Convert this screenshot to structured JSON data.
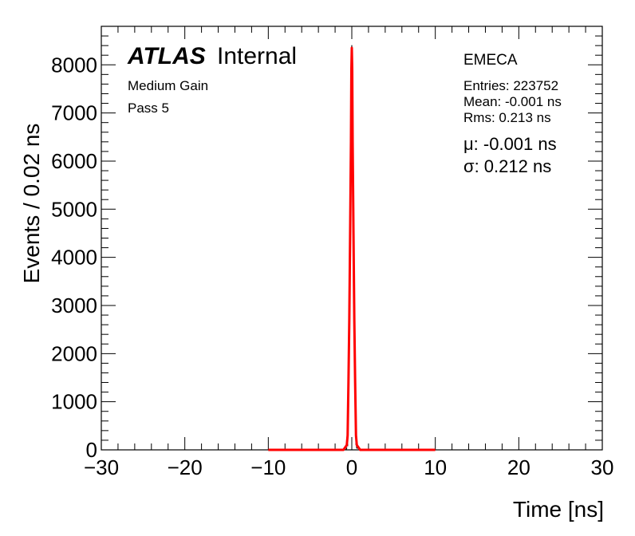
{
  "chart_data": {
    "type": "line",
    "xlabel": "Time [ns]",
    "ylabel": "Events / 0.02 ns",
    "xlim": [
      -30,
      30
    ],
    "ylim": [
      0,
      8800
    ],
    "x_ticks": [
      -30,
      -20,
      -10,
      0,
      10,
      20,
      30
    ],
    "x_tick_labels": [
      "−30",
      "−20",
      "−10",
      "0",
      "10",
      "20",
      "30"
    ],
    "y_ticks": [
      0,
      1000,
      2000,
      3000,
      4000,
      5000,
      6000,
      7000,
      8000
    ],
    "y_tick_labels": [
      "0",
      "1000",
      "2000",
      "3000",
      "4000",
      "5000",
      "6000",
      "7000",
      "8000"
    ],
    "grid": false,
    "series": [
      {
        "kind": "histogram",
        "color": "#000000",
        "x": [
          -0.7,
          -0.5,
          -0.4,
          -0.3,
          -0.2,
          -0.1,
          -0.05,
          0.0,
          0.05,
          0.1,
          0.2,
          0.3,
          0.4,
          0.5,
          0.7
        ],
        "y": [
          0,
          80,
          1200,
          2500,
          4300,
          6200,
          7700,
          8400,
          7800,
          6300,
          4400,
          2600,
          1300,
          90,
          0
        ]
      },
      {
        "kind": "fit",
        "color": "#ff0000",
        "x": [
          -10,
          -1.0,
          -0.6,
          -0.5,
          -0.4,
          -0.3,
          -0.2,
          -0.1,
          -0.05,
          0.0,
          0.05,
          0.1,
          0.2,
          0.3,
          0.4,
          0.5,
          0.6,
          1.0,
          10
        ],
        "y": [
          0,
          0,
          100,
          300,
          1400,
          2700,
          4500,
          6400,
          7900,
          8350,
          7900,
          6400,
          4500,
          2700,
          1400,
          300,
          100,
          0,
          0
        ]
      }
    ]
  },
  "labels": {
    "atlas": "ATLAS",
    "internal": "Internal",
    "gain": "Medium Gain",
    "pass": "Pass 5",
    "region": "EMECA",
    "entries": "Entries: 223752",
    "mean": "Mean: -0.001 ns",
    "rms": "Rms: 0.213 ns",
    "mu": "μ: -0.001 ns",
    "sigma": "σ: 0.212 ns"
  },
  "colors": {
    "data": "#000000",
    "fit": "#ff0000"
  }
}
